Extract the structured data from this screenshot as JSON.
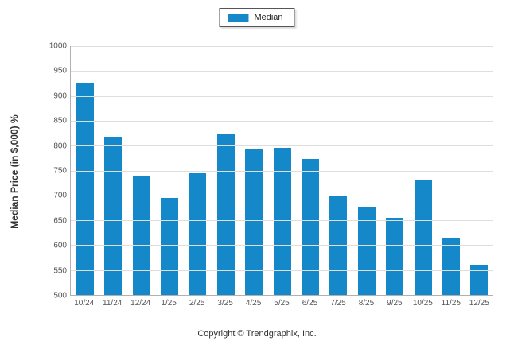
{
  "chart_data": {
    "type": "bar",
    "categories": [
      "10/24",
      "11/24",
      "12/24",
      "1/25",
      "2/25",
      "3/25",
      "4/25",
      "5/25",
      "6/25",
      "7/25",
      "8/25",
      "9/25",
      "10/25",
      "11/25",
      "12/25"
    ],
    "values": [
      925,
      818,
      740,
      695,
      745,
      825,
      793,
      795,
      773,
      700,
      678,
      655,
      732,
      615,
      560
    ],
    "title": "",
    "legend": "Median",
    "xlabel": "",
    "ylabel": "Median Price (in $,000) %",
    "ylim": [
      500,
      1000
    ],
    "ytick_step": 50,
    "bar_color": "#1588c9",
    "grid": true,
    "legend_position": "top-center"
  },
  "footer": {
    "copyright": "Copyright © Trendgraphix, Inc."
  }
}
